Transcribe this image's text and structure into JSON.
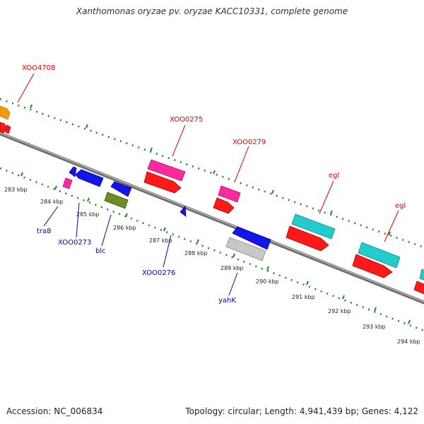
{
  "title": "Xanthomonas oryzae pv. oryzae KACC10331, complete genome",
  "footer": {
    "accession": "Accession: NC_006834",
    "summary": "Topology: circular; Length: 4,941,439 bp; Genes: 4,122"
  },
  "colors": {
    "backbone": "#8c8c8c",
    "tick": "#1f8a1f",
    "forward_label": "#dd0000",
    "reverse_label": "#0000bb",
    "orange": "#ff9900",
    "red": "#ff1a1a",
    "magenta": "#ff2aa0",
    "blue": "#1414ee",
    "green": "#6b8e23",
    "cyan": "#22cccc",
    "gray": "#c8c8c8"
  },
  "scale": {
    "ticks": [
      {
        "label": "283 kbp",
        "kbp": 283
      },
      {
        "label": "284 kbp",
        "kbp": 284
      },
      {
        "label": "285 kbp",
        "kbp": 285
      },
      {
        "label": "286 kbp",
        "kbp": 286
      },
      {
        "label": "287 kbp",
        "kbp": 287
      },
      {
        "label": "288 kbp",
        "kbp": 288
      },
      {
        "label": "289 kbp",
        "kbp": 289
      },
      {
        "label": "290 kbp",
        "kbp": 290
      },
      {
        "label": "291 kbp",
        "kbp": 291
      },
      {
        "label": "292 kbp",
        "kbp": 292
      },
      {
        "label": "293 kbp",
        "kbp": 293
      },
      {
        "label": "294 kbp",
        "kbp": 294
      }
    ]
  },
  "gene_labels": {
    "forward": [
      "XOO4708",
      "XOO0275",
      "XOO0279",
      "egl",
      "egl"
    ],
    "reverse": [
      "tra8",
      "XOO0273",
      "blc",
      "XOO0276",
      "yahK"
    ]
  }
}
